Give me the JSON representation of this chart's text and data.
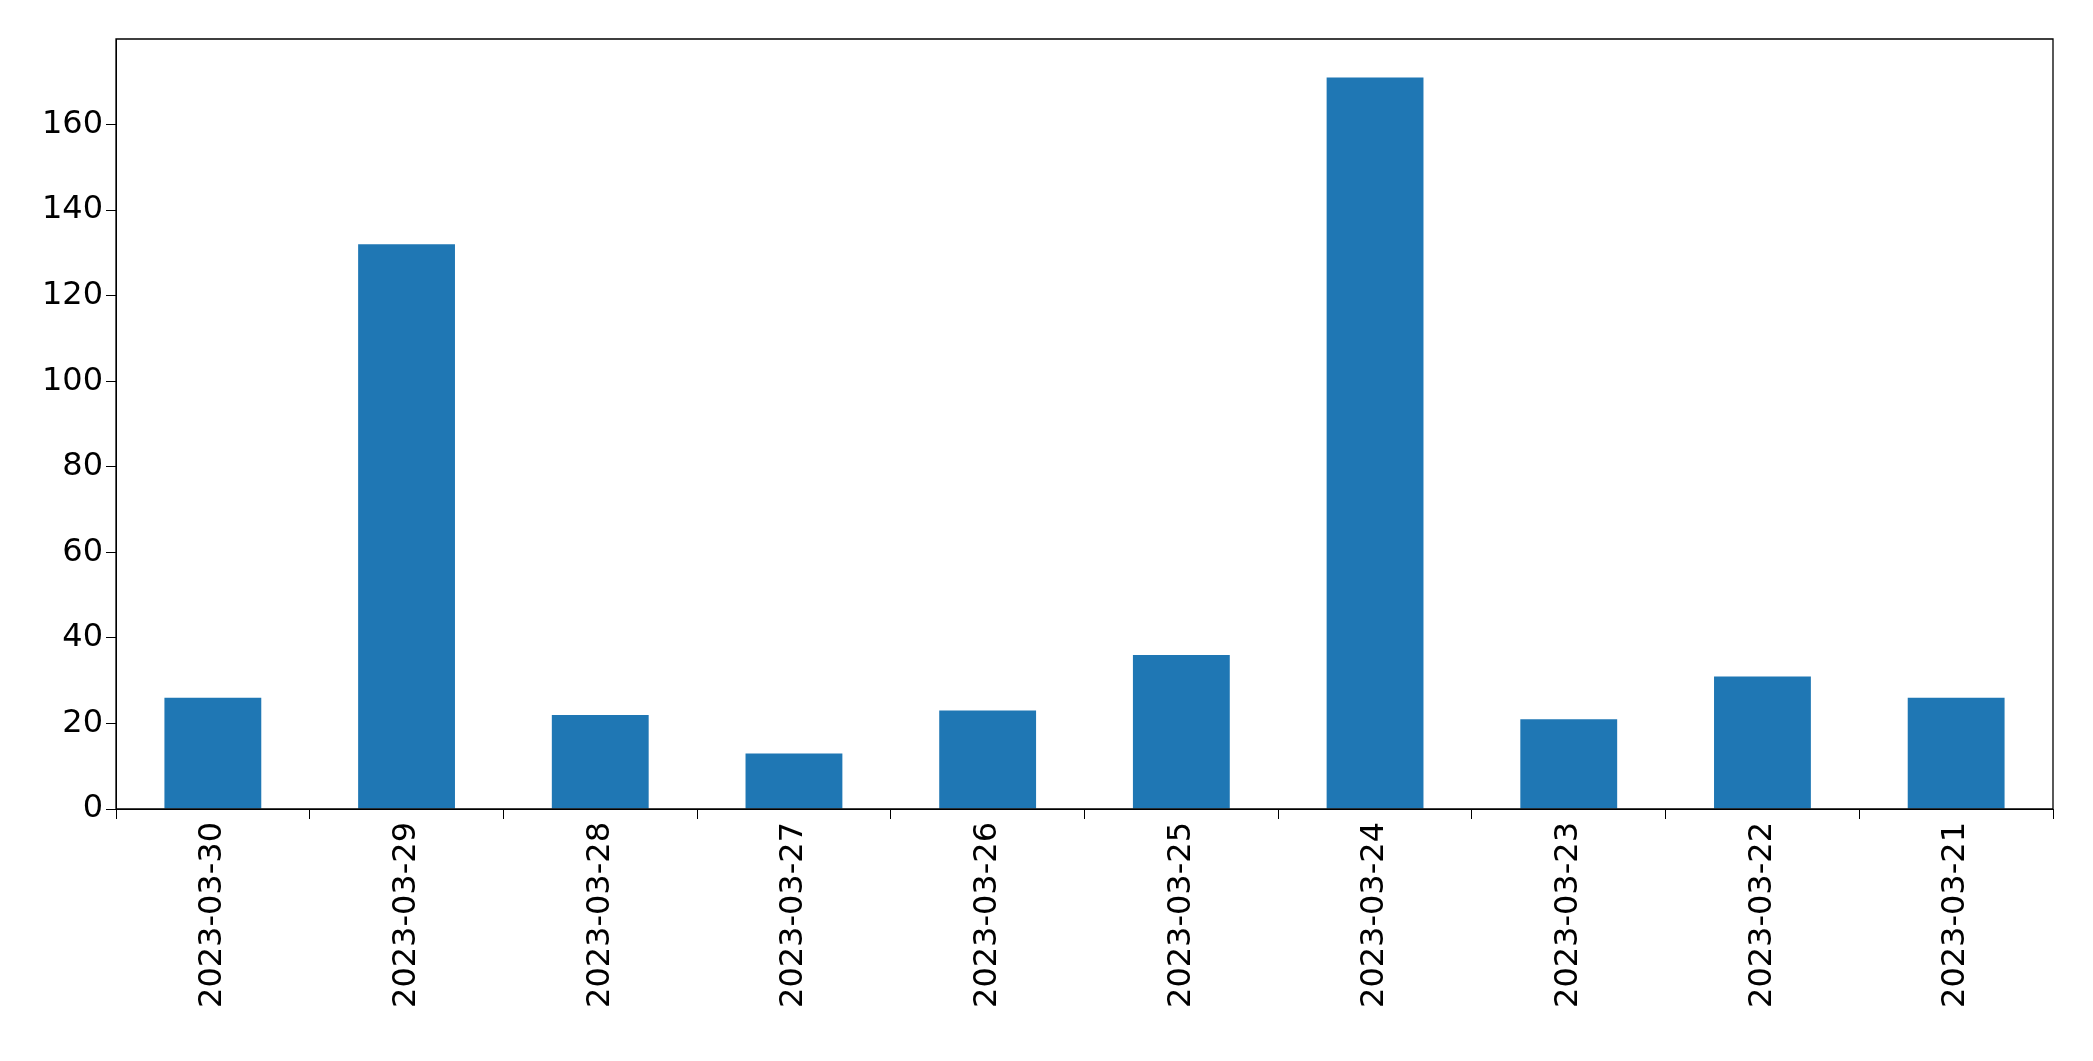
{
  "chart_data": {
    "type": "bar",
    "categories": [
      "2023-03-30",
      "2023-03-29",
      "2023-03-28",
      "2023-03-27",
      "2023-03-26",
      "2023-03-25",
      "2023-03-24",
      "2023-03-23",
      "2023-03-22",
      "2023-03-21"
    ],
    "values": [
      26,
      132,
      22,
      13,
      23,
      36,
      171,
      21,
      31,
      26
    ],
    "color": "#1f77b4",
    "ylim": [
      0,
      180
    ],
    "yticks": [
      0,
      20,
      40,
      60,
      80,
      100,
      120,
      140,
      160
    ],
    "grid": false,
    "legend": false
  }
}
